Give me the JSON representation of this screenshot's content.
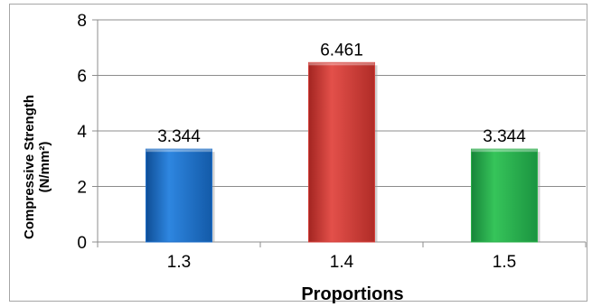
{
  "chart_data": {
    "type": "bar",
    "categories": [
      "1.3",
      "1.4",
      "1.5"
    ],
    "values": [
      3.344,
      6.461,
      3.344
    ],
    "data_labels": [
      "3.344",
      "6.461",
      "3.344"
    ],
    "colors": [
      "#1f6fc9",
      "#d33f3a",
      "#2bb04a"
    ],
    "xlabel": "Proportions",
    "ylabel_line1": "Compressive Strength",
    "ylabel_line2": "(N/mm²)",
    "ylim": [
      0,
      8
    ],
    "yticks": [
      0,
      2,
      4,
      6,
      8
    ],
    "grid": "horizontal",
    "legend": false
  }
}
